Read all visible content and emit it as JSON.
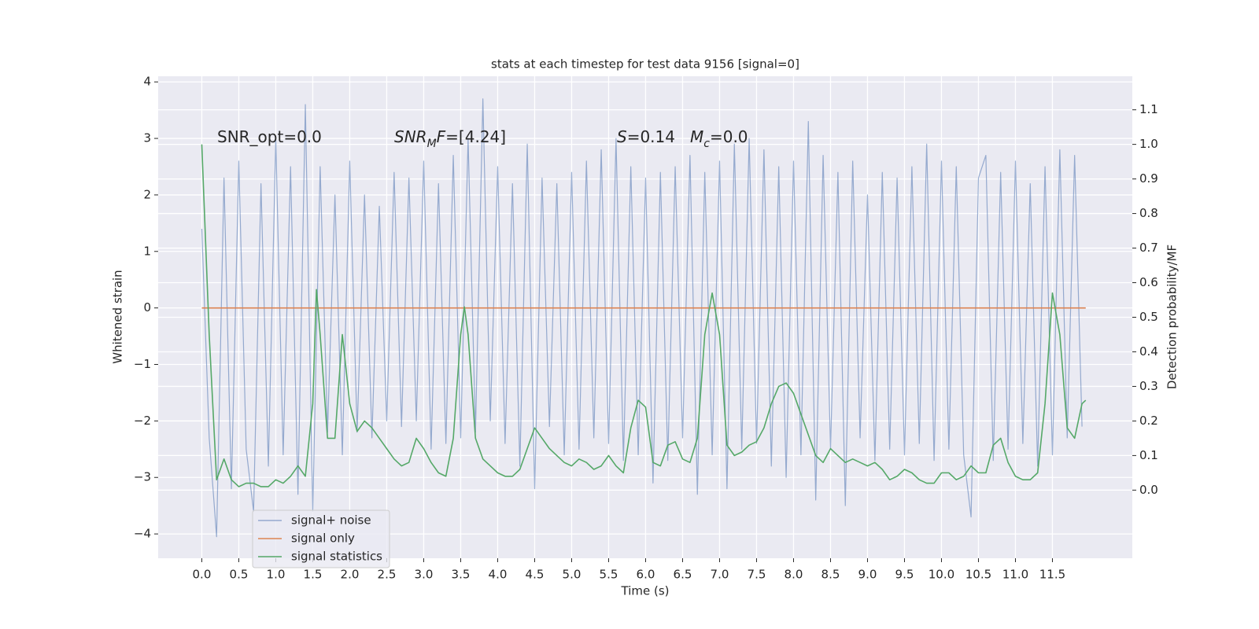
{
  "chart_data": {
    "type": "line",
    "title": "stats at each timestep for test data 9156 [signal=0]",
    "xlabel": "Time (s)",
    "ylabel": "Whitened strain",
    "y2label": "Detection probability/MF",
    "xlim": [
      -0.59,
      12.58
    ],
    "ylim": [
      -4.43,
      4.1
    ],
    "y2lim": [
      -0.197,
      1.197
    ],
    "xticks": [
      {
        "value": 0,
        "label": "0.0"
      },
      0.5,
      {
        "value": 1,
        "label": "1.0"
      },
      1.5,
      {
        "value": 2,
        "label": "2.0"
      },
      2.5,
      {
        "value": 3,
        "label": "3.0"
      },
      3.5,
      {
        "value": 4,
        "label": "4.0"
      },
      4.5,
      {
        "value": 5,
        "label": "5.0"
      },
      5.5,
      {
        "value": 6,
        "label": "6.0"
      },
      6.5,
      {
        "value": 7,
        "label": "7.0"
      },
      7.5,
      {
        "value": 8,
        "label": "8.0"
      },
      8.5,
      {
        "value": 9,
        "label": "9.0"
      },
      9.5,
      {
        "value": 10,
        "label": "10.0"
      },
      10.5,
      {
        "value": 11,
        "label": "11.0"
      },
      11.5
    ],
    "yticks": [
      {
        "value": -4,
        "label": "−4"
      },
      {
        "value": -3,
        "label": "−3"
      },
      {
        "value": -2,
        "label": "−2"
      },
      {
        "value": -1,
        "label": "−1"
      },
      0,
      1,
      2,
      3,
      4
    ],
    "y2ticks": [
      {
        "value": 0,
        "label": "0.0"
      },
      0.1,
      0.2,
      0.3,
      0.4,
      0.5,
      0.6,
      0.7,
      0.8,
      0.9,
      {
        "value": 1,
        "label": "1.0"
      },
      1.1
    ],
    "grid": true,
    "legend": "lower left",
    "series": [
      {
        "name": "signal+ noise",
        "color": "#4c72b0",
        "x": [
          0,
          0.1,
          0.2,
          0.3,
          0.4,
          0.5,
          0.6,
          0.7,
          0.8,
          0.9,
          1,
          1.1,
          1.2,
          1.3,
          1.4,
          1.5,
          1.6,
          1.7,
          1.8,
          1.9,
          2,
          2.1,
          2.2,
          2.3,
          2.4,
          2.5,
          2.6,
          2.7,
          2.8,
          2.9,
          3,
          3.1,
          3.2,
          3.3,
          3.4,
          3.5,
          3.6,
          3.7,
          3.8,
          3.9,
          4,
          4.1,
          4.2,
          4.3,
          4.4,
          4.5,
          4.6,
          4.7,
          4.8,
          4.9,
          5,
          5.1,
          5.2,
          5.3,
          5.4,
          5.5,
          5.6,
          5.7,
          5.8,
          5.9,
          6,
          6.1,
          6.2,
          6.3,
          6.4,
          6.5,
          6.6,
          6.7,
          6.8,
          6.9,
          7,
          7.1,
          7.2,
          7.3,
          7.4,
          7.5,
          7.6,
          7.7,
          7.8,
          7.9,
          8,
          8.1,
          8.2,
          8.3,
          8.4,
          8.5,
          8.6,
          8.7,
          8.8,
          8.9,
          9,
          9.1,
          9.2,
          9.3,
          9.4,
          9.5,
          9.6,
          9.7,
          9.8,
          9.9,
          10,
          10.1,
          10.2,
          10.3,
          10.4,
          10.5,
          10.6,
          10.7,
          10.8,
          10.9,
          11,
          11.1,
          11.2,
          11.3,
          11.4,
          11.5,
          11.6,
          11.7,
          11.8,
          11.9
        ],
        "values": [
          1.4,
          -2.3,
          -4.05,
          2.3,
          -3.2,
          2.6,
          -2.5,
          -3.6,
          2.2,
          -2.8,
          3.0,
          -2.6,
          2.5,
          -3.3,
          3.6,
          -3.6,
          2.5,
          -2.2,
          2.0,
          -2.6,
          2.6,
          -2.2,
          2.0,
          -2.3,
          1.8,
          -2.0,
          2.4,
          -2.1,
          2.3,
          -2.0,
          2.6,
          -2.5,
          2.2,
          -2.4,
          2.7,
          -2.3,
          3.0,
          -2.2,
          3.7,
          -2.0,
          2.5,
          -2.4,
          2.2,
          -2.8,
          2.9,
          -3.2,
          2.3,
          -2.1,
          2.2,
          -2.6,
          2.4,
          -2.5,
          2.6,
          -2.3,
          2.8,
          -2.4,
          3.0,
          -2.7,
          2.5,
          -2.6,
          2.3,
          -3.1,
          2.4,
          -2.7,
          2.5,
          -2.3,
          2.7,
          -3.3,
          2.4,
          -2.6,
          2.6,
          -3.2,
          2.9,
          -2.5,
          3.0,
          -2.4,
          2.8,
          -2.8,
          2.5,
          -3.0,
          2.6,
          -2.6,
          3.3,
          -3.4,
          2.7,
          -2.5,
          2.4,
          -3.5,
          2.6,
          -2.3,
          2.0,
          -2.7,
          2.4,
          -2.5,
          2.3,
          -2.6,
          2.5,
          -2.4,
          2.9,
          -2.7,
          2.6,
          -2.5,
          2.5,
          -2.6,
          -3.7,
          2.3,
          2.7,
          -2.7,
          2.4,
          -2.5,
          2.6,
          -2.4,
          2.2,
          -2.8,
          2.5,
          -2.6,
          2.8,
          -2.3,
          2.7,
          -2.1
        ]
      },
      {
        "name": "signal only",
        "color": "#dd8452",
        "x": [
          0,
          11.95
        ],
        "values": [
          0,
          0
        ]
      },
      {
        "name": "signal statistics",
        "color": "#55a868",
        "axis": "y2",
        "x": [
          0,
          0.1,
          0.2,
          0.3,
          0.4,
          0.5,
          0.6,
          0.7,
          0.8,
          0.9,
          1,
          1.1,
          1.2,
          1.3,
          1.4,
          1.5,
          1.55,
          1.6,
          1.7,
          1.8,
          1.9,
          2,
          2.1,
          2.2,
          2.3,
          2.4,
          2.5,
          2.6,
          2.7,
          2.8,
          2.9,
          3,
          3.1,
          3.2,
          3.3,
          3.4,
          3.5,
          3.55,
          3.6,
          3.7,
          3.8,
          3.9,
          4,
          4.1,
          4.2,
          4.3,
          4.4,
          4.5,
          4.6,
          4.7,
          4.8,
          4.9,
          5,
          5.1,
          5.2,
          5.3,
          5.4,
          5.5,
          5.6,
          5.7,
          5.8,
          5.9,
          6,
          6.1,
          6.2,
          6.3,
          6.4,
          6.5,
          6.6,
          6.7,
          6.8,
          6.9,
          7,
          7.1,
          7.2,
          7.3,
          7.4,
          7.5,
          7.6,
          7.7,
          7.8,
          7.9,
          8,
          8.1,
          8.2,
          8.3,
          8.4,
          8.5,
          8.6,
          8.7,
          8.8,
          8.9,
          9,
          9.1,
          9.2,
          9.3,
          9.4,
          9.5,
          9.6,
          9.7,
          9.8,
          9.9,
          10,
          10.1,
          10.2,
          10.3,
          10.4,
          10.5,
          10.6,
          10.7,
          10.8,
          10.9,
          11,
          11.1,
          11.2,
          11.3,
          11.4,
          11.5,
          11.6,
          11.7,
          11.8,
          11.9,
          11.95
        ],
        "values": [
          1.0,
          0.45,
          0.03,
          0.09,
          0.03,
          0.01,
          0.02,
          0.02,
          0.01,
          0.01,
          0.03,
          0.02,
          0.04,
          0.07,
          0.04,
          0.25,
          0.58,
          0.45,
          0.15,
          0.15,
          0.45,
          0.25,
          0.17,
          0.2,
          0.18,
          0.15,
          0.12,
          0.09,
          0.07,
          0.08,
          0.15,
          0.12,
          0.08,
          0.05,
          0.04,
          0.15,
          0.45,
          0.53,
          0.45,
          0.15,
          0.09,
          0.07,
          0.05,
          0.04,
          0.04,
          0.06,
          0.12,
          0.18,
          0.15,
          0.12,
          0.1,
          0.08,
          0.07,
          0.09,
          0.08,
          0.06,
          0.07,
          0.1,
          0.07,
          0.05,
          0.18,
          0.26,
          0.24,
          0.08,
          0.07,
          0.13,
          0.14,
          0.09,
          0.08,
          0.15,
          0.45,
          0.57,
          0.45,
          0.13,
          0.1,
          0.11,
          0.13,
          0.14,
          0.18,
          0.25,
          0.3,
          0.31,
          0.28,
          0.22,
          0.16,
          0.1,
          0.08,
          0.12,
          0.1,
          0.08,
          0.09,
          0.08,
          0.07,
          0.08,
          0.06,
          0.03,
          0.04,
          0.06,
          0.05,
          0.03,
          0.02,
          0.02,
          0.05,
          0.05,
          0.03,
          0.04,
          0.07,
          0.05,
          0.05,
          0.13,
          0.15,
          0.08,
          0.04,
          0.03,
          0.03,
          0.05,
          0.25,
          0.57,
          0.45,
          0.18,
          0.15,
          0.25,
          0.26
        ]
      }
    ],
    "annotations": [
      {
        "parts": [
          {
            "text": "SNR_opt=0.0"
          }
        ]
      },
      {
        "parts": [
          {
            "text": "SNR",
            "italic": true
          },
          {
            "text": "M",
            "italic": true,
            "sub": true
          },
          {
            "text": "F",
            "italic": true
          },
          {
            "text": "=[4.24]"
          }
        ]
      },
      {
        "parts": [
          {
            "text": "S",
            "italic": true
          },
          {
            "text": "=0.14"
          }
        ]
      },
      {
        "parts": [
          {
            "text": "M",
            "italic": true
          },
          {
            "text": "c",
            "italic": true,
            "sub": true
          },
          {
            "text": "=0.0"
          }
        ]
      }
    ]
  }
}
